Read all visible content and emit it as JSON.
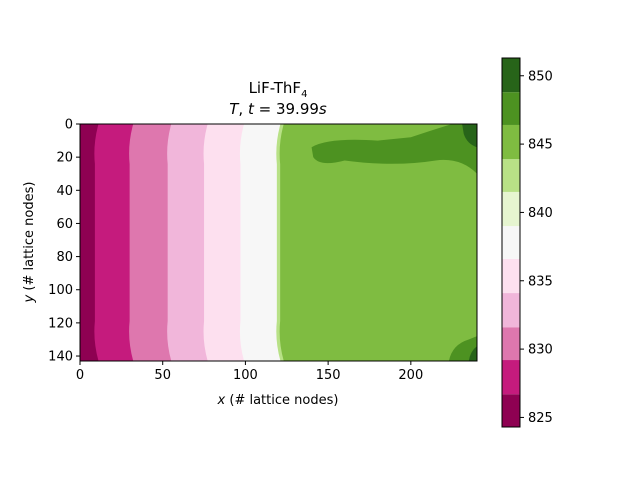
{
  "chart_data": {
    "type": "heatmap",
    "title_line1": "LiF-ThF",
    "title_line1_sub": "4",
    "title_line2_var": "T",
    "title_line2_rest": ", ",
    "title_line2_t": "t",
    "title_line2_eq": " = 39.99",
    "title_line2_unit": "s",
    "xlabel_var": "x",
    "xlabel_rest": " (# lattice nodes)",
    "ylabel_var": "y",
    "ylabel_rest": " (# lattice nodes)",
    "xlim": [
      0,
      240
    ],
    "ylim": [
      143,
      0
    ],
    "x_ticks": [
      0,
      50,
      100,
      150,
      200
    ],
    "y_ticks": [
      0,
      20,
      40,
      60,
      80,
      100,
      120,
      140
    ],
    "colorbar": {
      "levels": [
        824.3,
        826.7,
        829.2,
        831.6,
        834.1,
        836.6,
        839.0,
        841.5,
        843.9,
        846.4,
        848.8,
        851.3
      ],
      "colors": [
        "#8e0152",
        "#c51b7d",
        "#de77ae",
        "#f1b6da",
        "#fde0ef",
        "#f7f7f7",
        "#e6f5d0",
        "#b8e186",
        "#7fbc41",
        "#4d9221",
        "#276419"
      ],
      "ticks": [
        825,
        830,
        835,
        840,
        845,
        850
      ]
    },
    "field": {
      "description_bands_x": [
        0,
        9,
        30,
        53,
        75,
        97,
        119,
        121,
        240
      ],
      "band_level_index": [
        0,
        1,
        2,
        3,
        4,
        5,
        7,
        8
      ],
      "dark_patch_level_index": 9,
      "edge_level_index": 10
    }
  }
}
